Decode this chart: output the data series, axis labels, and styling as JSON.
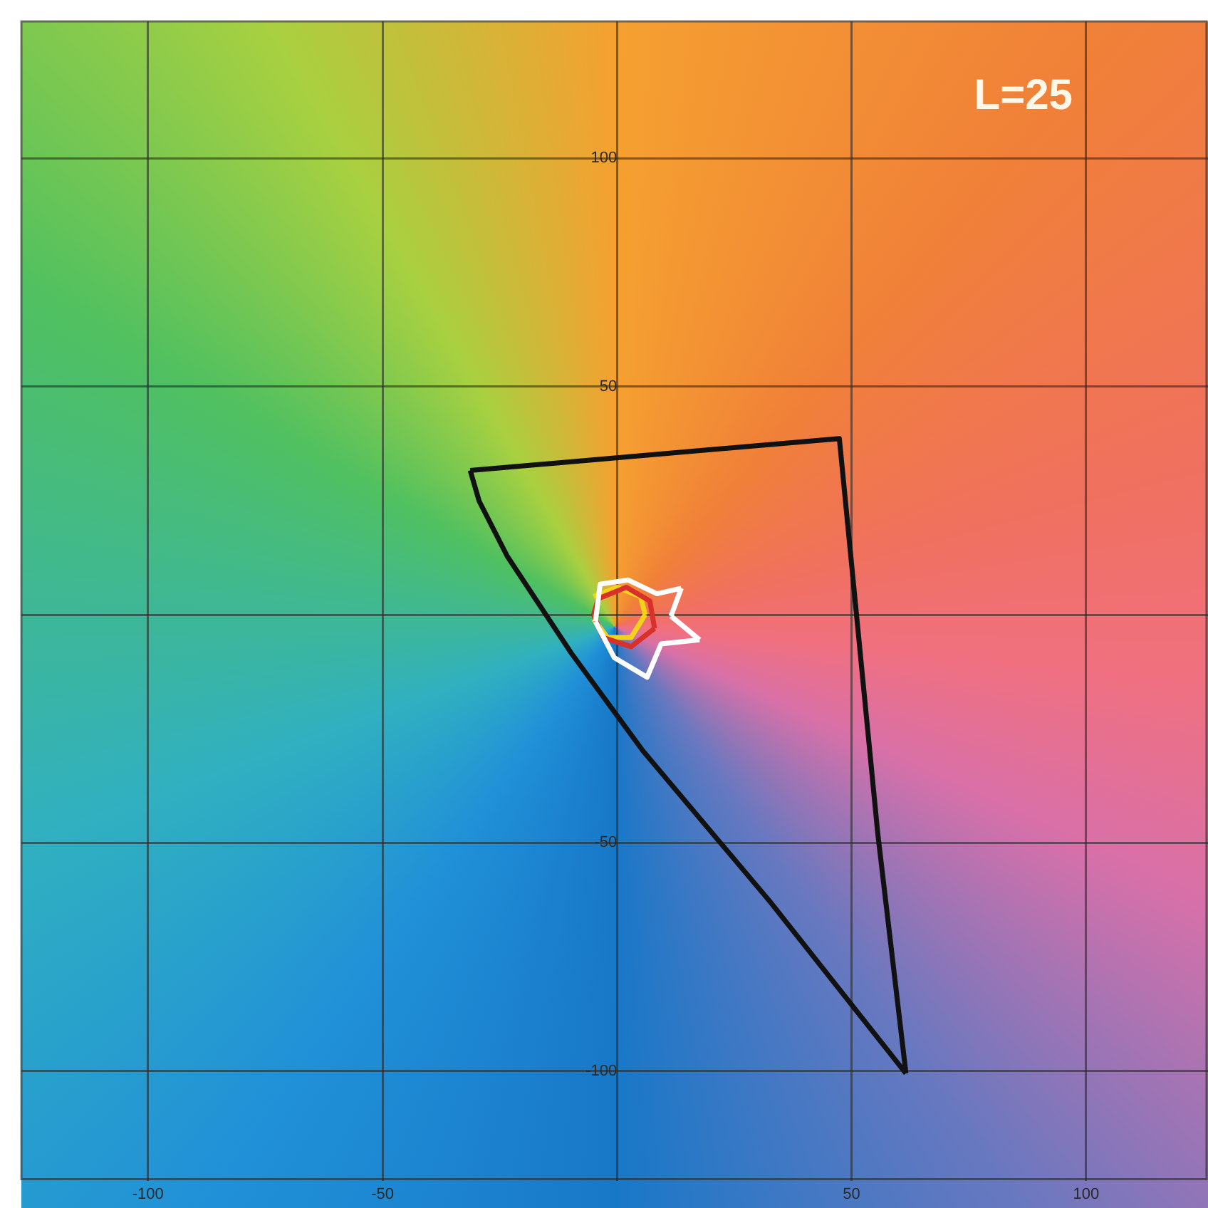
{
  "chart_data": {
    "type": "line",
    "xlim": [
      -127,
      126
    ],
    "ylim": [
      -124,
      130
    ],
    "xticks": [
      -100,
      -50,
      {
        "value": 0,
        "label": null
      },
      50,
      100
    ],
    "yticks": [
      -100,
      -50,
      {
        "value": 0,
        "label": null
      },
      50,
      100
    ],
    "grid": true,
    "legend": false,
    "marker": "none",
    "line_style": "solid",
    "annotations": [
      "L=25"
    ],
    "series": [
      {
        "color": "#111111",
        "x": [
          -31.3,
          47.4,
          51,
          55.6,
          61.6
        ],
        "values": [
          31.6,
          38.6,
          0.6,
          -48,
          -100.5
        ]
      },
      {
        "color": "#111111",
        "x": [
          -31.3,
          -29.4,
          -23.4,
          -9.7,
          5.5,
          32.8,
          61.6
        ],
        "values": [
          31.6,
          24.9,
          12.8,
          -8.5,
          -29.8,
          -63.1,
          -100.5
        ]
      },
      {
        "color": "#ffffff",
        "x": [
          -4.6,
          -3.6,
          2.4,
          8.5,
          13.7
        ],
        "values": [
          -1.5,
          6.7,
          7.6,
          4.6,
          5.8
        ]
      },
      {
        "color": "#ffffff",
        "x": [
          11.5,
          13.7
        ],
        "values": [
          -0.3,
          5.8
        ]
      },
      {
        "color": "#ffffff",
        "x": [
          11.5,
          17.6
        ],
        "values": [
          -0.3,
          -5.5
        ]
      },
      {
        "color": "#ffffff",
        "x": [
          -4.6,
          -0.6,
          6.4,
          9.4,
          17.6
        ],
        "values": [
          -1.5,
          -9.4,
          -13.7,
          -6.4,
          -5.5
        ]
      },
      {
        "color": "#d8302a",
        "x": [
          -5,
          -4,
          2,
          7,
          8
        ],
        "values": [
          0,
          3.5,
          6,
          3,
          -3
        ]
      },
      {
        "color": "#d8302a",
        "x": [
          -5,
          -3,
          3,
          8
        ],
        "values": [
          0,
          -5,
          -7,
          -3
        ]
      },
      {
        "color": "#f2d21a",
        "x": [
          -5,
          0,
          5,
          6
        ],
        "values": [
          4,
          6,
          4,
          0
        ]
      },
      {
        "color": "#f2d21a",
        "x": [
          -5,
          -2,
          3,
          6
        ],
        "values": [
          -1,
          -5,
          -5,
          0
        ]
      }
    ]
  }
}
